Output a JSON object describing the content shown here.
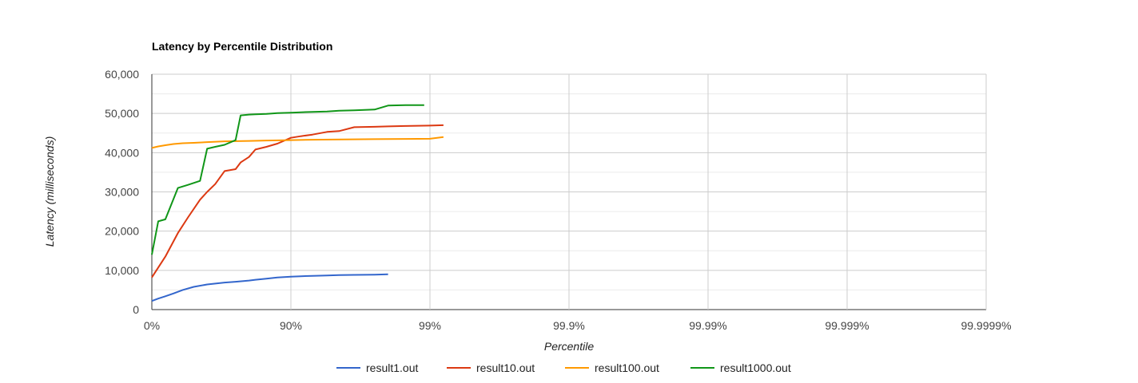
{
  "chart_data": {
    "type": "line",
    "title": "Latency by Percentile Distribution",
    "xlabel": "Percentile",
    "ylabel": "Latency (milliseconds)",
    "x_scale": "percentile-log",
    "x_ticks": [
      "0%",
      "90%",
      "99%",
      "99.9%",
      "99.99%",
      "99.999%",
      "99.9999%"
    ],
    "y_ticks": [
      "0",
      "10,000",
      "20,000",
      "30,000",
      "40,000",
      "50,000",
      "60,000"
    ],
    "ylim": [
      0,
      60000
    ],
    "grid": true,
    "legend_position": "bottom",
    "series": [
      {
        "name": "result1.out",
        "color": "#3366cc",
        "x": [
          0,
          10,
          20,
          30,
          40,
          50,
          60,
          70,
          75,
          80,
          82,
          85,
          87.5,
          90,
          91.5,
          93,
          94.5,
          95.5,
          96.5,
          97.5,
          98
        ],
        "y": [
          2200,
          2800,
          3400,
          4100,
          5000,
          5800,
          6400,
          6900,
          7100,
          7400,
          7600,
          7900,
          8200,
          8400,
          8500,
          8600,
          8700,
          8800,
          8850,
          8900,
          9000
        ]
      },
      {
        "name": "result10.out",
        "color": "#dc3912",
        "x": [
          0,
          20,
          35,
          45,
          55,
          60,
          65,
          70,
          75,
          77,
          80,
          82,
          85,
          87.5,
          90,
          91.5,
          93,
          94.5,
          95.5,
          96.5,
          97.5,
          98,
          98.5,
          99,
          99.2
        ],
        "y": [
          8200,
          13500,
          19500,
          23500,
          28000,
          30000,
          32000,
          35300,
          35800,
          37500,
          38900,
          40800,
          41500,
          42300,
          43800,
          44200,
          44600,
          45300,
          45500,
          46500,
          46600,
          46700,
          46800,
          46900,
          47000
        ]
      },
      {
        "name": "result100.out",
        "color": "#ff9900",
        "x": [
          0,
          10,
          20,
          30,
          40,
          50,
          60,
          70,
          80,
          85,
          90,
          93,
          95,
          96.5,
          97.5,
          98.5,
          99,
          99.2
        ],
        "y": [
          41200,
          41600,
          41900,
          42200,
          42400,
          42500,
          42700,
          42900,
          43000,
          43100,
          43200,
          43300,
          43350,
          43400,
          43450,
          43500,
          43550,
          44000
        ]
      },
      {
        "name": "result1000.out",
        "color": "#109618",
        "x": [
          0,
          10,
          20,
          35,
          45,
          55,
          60,
          65,
          70,
          75,
          77,
          80,
          82,
          85,
          87.5,
          90,
          91.5,
          93,
          94.5,
          95.5,
          96.5,
          97.5,
          98,
          98.5,
          98.9
        ],
        "y": [
          14000,
          22500,
          23000,
          31000,
          31800,
          32800,
          41000,
          41500,
          42000,
          43200,
          49500,
          49700,
          49800,
          49900,
          50100,
          50200,
          50300,
          50400,
          50500,
          50700,
          50800,
          51000,
          52000,
          52100,
          52100
        ]
      }
    ]
  }
}
